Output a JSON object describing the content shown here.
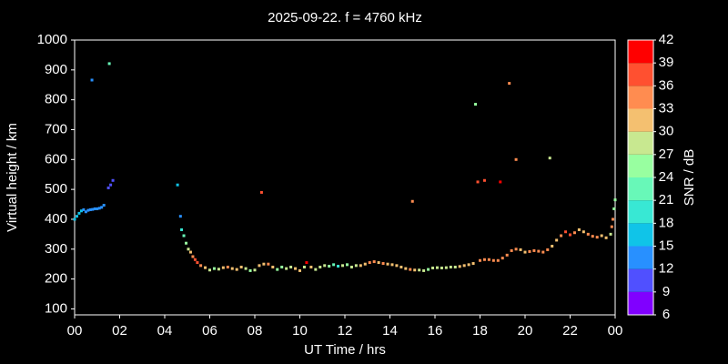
{
  "chart_data": {
    "type": "scatter",
    "title": "2025-09-22. f = 4760 kHz",
    "x_label": "UT Time / hrs",
    "y_label": "Virtual height / km",
    "xlim": [
      0,
      24
    ],
    "xticks": [
      {
        "value": 0,
        "label": "00"
      },
      {
        "value": 2,
        "label": "02"
      },
      {
        "value": 4,
        "label": "04"
      },
      {
        "value": 6,
        "label": "06"
      },
      {
        "value": 8,
        "label": "08"
      },
      10,
      12,
      14,
      16,
      18,
      20,
      22,
      {
        "value": 24,
        "label": "00"
      }
    ],
    "ylim": [
      80,
      1000
    ],
    "yticks": [
      100,
      200,
      300,
      400,
      500,
      600,
      700,
      800,
      900,
      1000
    ],
    "colorbar": {
      "label": "SNR / dB",
      "lim": [
        6,
        42
      ],
      "ticks": [
        6,
        9,
        12,
        15,
        18,
        21,
        24,
        27,
        30,
        33,
        36,
        39,
        42
      ],
      "colors": [
        "#8000ff",
        "#5050ff",
        "#2890ff",
        "#10c4e8",
        "#38e8d4",
        "#68f8b8",
        "#98ffa0",
        "#c8e890",
        "#f4c070",
        "#ff8c50",
        "#ff5030",
        "#ff0000"
      ]
    },
    "series": [
      {
        "x": [
          0.0,
          0.1,
          0.2,
          0.3,
          0.4,
          0.5,
          0.6,
          0.7,
          0.8,
          0.9,
          1.0,
          1.1,
          1.2,
          1.3,
          1.5,
          1.6,
          1.7,
          0.77,
          1.54,
          4.57,
          4.7,
          4.75,
          4.85,
          4.95,
          5.05,
          5.15,
          5.25,
          5.35,
          5.45,
          5.6,
          5.8,
          6.0,
          6.2,
          6.4,
          6.6,
          6.8,
          7.0,
          7.2,
          7.4,
          7.6,
          7.8,
          8.0,
          8.2,
          8.3,
          8.4,
          8.6,
          8.8,
          9.0,
          9.2,
          9.4,
          9.6,
          9.8,
          10.0,
          10.2,
          10.3,
          10.5,
          10.7,
          10.9,
          11.1,
          11.3,
          11.5,
          11.7,
          11.9,
          12.1,
          12.3,
          12.5,
          12.7,
          12.9,
          13.1,
          13.3,
          13.5,
          13.7,
          13.9,
          14.1,
          14.3,
          14.5,
          14.7,
          14.9,
          15.0,
          15.1,
          15.3,
          15.5,
          15.7,
          15.9,
          16.1,
          16.3,
          16.5,
          16.7,
          16.9,
          17.1,
          17.3,
          17.5,
          17.7,
          17.8,
          17.9,
          18.0,
          18.2,
          18.2,
          18.4,
          18.6,
          18.8,
          18.9,
          19.0,
          19.2,
          19.3,
          19.4,
          19.6,
          19.6,
          19.8,
          20.0,
          20.2,
          20.4,
          20.6,
          20.8,
          21.0,
          21.1,
          21.2,
          21.4,
          21.6,
          21.8,
          22.0,
          22.2,
          22.4,
          22.6,
          22.8,
          23.0,
          23.2,
          23.4,
          23.6,
          23.8,
          23.85,
          23.9,
          23.95,
          24.0
        ],
        "y": [
          400,
          410,
          420,
          428,
          432,
          425,
          430,
          432,
          433,
          435,
          435,
          437,
          440,
          447,
          505,
          515,
          530,
          866,
          921,
          515,
          410,
          365,
          345,
          320,
          300,
          290,
          275,
          265,
          255,
          245,
          238,
          230,
          235,
          233,
          238,
          240,
          235,
          232,
          240,
          235,
          228,
          230,
          245,
          490,
          250,
          250,
          240,
          232,
          240,
          235,
          240,
          235,
          228,
          240,
          255,
          240,
          232,
          240,
          245,
          243,
          248,
          243,
          245,
          248,
          240,
          245,
          245,
          250,
          255,
          258,
          255,
          252,
          250,
          248,
          245,
          240,
          235,
          232,
          460,
          230,
          230,
          228,
          232,
          237,
          238,
          237,
          238,
          240,
          240,
          242,
          245,
          248,
          252,
          785,
          525,
          262,
          265,
          530,
          265,
          262,
          262,
          525,
          270,
          280,
          855,
          295,
          300,
          600,
          298,
          290,
          292,
          295,
          293,
          290,
          298,
          605,
          310,
          330,
          345,
          358,
          348,
          355,
          365,
          358,
          350,
          343,
          340,
          345,
          338,
          350,
          375,
          400,
          435,
          465
        ],
        "snr": [
          15,
          15,
          15,
          15,
          14,
          13,
          13,
          13,
          13,
          13,
          13,
          12,
          12,
          12,
          10,
          10,
          10,
          13,
          21,
          15,
          13,
          18,
          21,
          24,
          27,
          30,
          33,
          36,
          36,
          33,
          30,
          27,
          24,
          27,
          30,
          33,
          30,
          30,
          30,
          27,
          24,
          27,
          30,
          36,
          30,
          33,
          30,
          24,
          24,
          27,
          27,
          30,
          30,
          27,
          39,
          30,
          27,
          27,
          27,
          24,
          21,
          18,
          27,
          24,
          27,
          27,
          30,
          30,
          33,
          33,
          30,
          33,
          30,
          30,
          30,
          30,
          30,
          33,
          33,
          30,
          27,
          27,
          24,
          27,
          27,
          27,
          27,
          27,
          27,
          30,
          30,
          30,
          30,
          24,
          36,
          33,
          33,
          36,
          33,
          33,
          33,
          39,
          33,
          33,
          33,
          33,
          33,
          33,
          30,
          30,
          33,
          33,
          33,
          33,
          33,
          27,
          30,
          30,
          33,
          36,
          36,
          33,
          30,
          30,
          33,
          33,
          33,
          30,
          30,
          27,
          33,
          33,
          24,
          24
        ]
      }
    ]
  }
}
